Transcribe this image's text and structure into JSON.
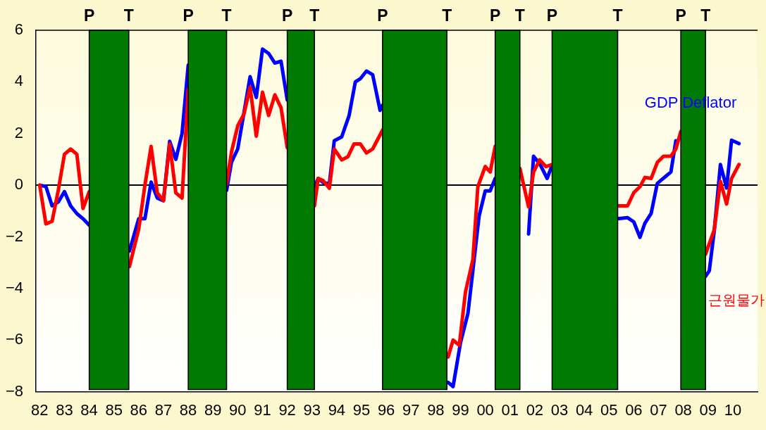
{
  "chart_data": {
    "type": "line",
    "legend": false,
    "grid": false,
    "marker": "none",
    "line_style": "solid",
    "xlim": [
      1981.85,
      2011.0
    ],
    "xticks": [
      {
        "value": 1982,
        "label": "82"
      },
      {
        "value": 1983,
        "label": "83"
      },
      {
        "value": 1984,
        "label": "84"
      },
      {
        "value": 1985,
        "label": "85"
      },
      {
        "value": 1986,
        "label": "86"
      },
      {
        "value": 1987,
        "label": "87"
      },
      {
        "value": 1988,
        "label": "88"
      },
      {
        "value": 1989,
        "label": "89"
      },
      {
        "value": 1990,
        "label": "90"
      },
      {
        "value": 1991,
        "label": "91"
      },
      {
        "value": 1992,
        "label": "92"
      },
      {
        "value": 1993,
        "label": "93"
      },
      {
        "value": 1994,
        "label": "94"
      },
      {
        "value": 1995,
        "label": "95"
      },
      {
        "value": 1996,
        "label": "96"
      },
      {
        "value": 1997,
        "label": "97"
      },
      {
        "value": 1998,
        "label": "98"
      },
      {
        "value": 1999,
        "label": "99"
      },
      {
        "value": 2000,
        "label": "00"
      },
      {
        "value": 2001,
        "label": "01"
      },
      {
        "value": 2002,
        "label": "02"
      },
      {
        "value": 2003,
        "label": "03"
      },
      {
        "value": 2004,
        "label": "04"
      },
      {
        "value": 2005,
        "label": "05"
      },
      {
        "value": 2006,
        "label": "06"
      },
      {
        "value": 2007,
        "label": "07"
      },
      {
        "value": 2008,
        "label": "08"
      },
      {
        "value": 2009,
        "label": "09"
      },
      {
        "value": 2010,
        "label": "10"
      }
    ],
    "ylim": [
      -8,
      6
    ],
    "yticks": [
      6,
      4,
      2,
      0,
      {
        "value": -2,
        "label": "−2"
      },
      {
        "value": -4,
        "label": "−4"
      },
      {
        "value": -6,
        "label": "−6"
      },
      {
        "value": -8,
        "label": "−8"
      }
    ],
    "series": [
      {
        "name": "GDP Deflator",
        "color": "#0000ff",
        "x": [
          1982.0,
          1982.25,
          1982.5,
          1982.75,
          1983.0,
          1983.25,
          1983.5,
          1983.75,
          1984.0,
          1984.8,
          1985.625,
          1986.0,
          1986.25,
          1986.5,
          1986.75,
          1987.0,
          1987.25,
          1987.5,
          1987.75,
          1988.0,
          1988.8,
          1989.55,
          1989.75,
          1990.0,
          1990.25,
          1990.5,
          1990.75,
          1991.0,
          1991.25,
          1991.5,
          1991.75,
          1992.0,
          1992.5,
          1993.1,
          1993.25,
          1993.45,
          1993.7,
          1993.9,
          1994.2,
          1994.5,
          1994.75,
          1994.95,
          1995.2,
          1995.45,
          1995.75,
          1995.85,
          1997.0,
          1998.5,
          1998.7,
          1999.0,
          1999.3,
          1999.5,
          1999.75,
          2000.0,
          2000.2,
          2000.4,
          2000.9,
          2001.4,
          2001.75,
          2001.95,
          2002.2,
          2002.5,
          2002.7,
          2004.0,
          2005.35,
          2005.75,
          2006.0,
          2006.25,
          2006.45,
          2006.7,
          2006.95,
          2007.25,
          2007.5,
          2007.7,
          2007.9,
          2008.4,
          2008.9,
          2009.05,
          2009.25,
          2009.5,
          2009.75,
          2009.95,
          2010.25
        ],
        "values": [
          0,
          -0.05,
          -0.8,
          -0.65,
          -0.25,
          -0.8,
          -1.1,
          -1.3,
          -1.55,
          null,
          -2.55,
          -1.3,
          -1.3,
          0.12,
          -0.5,
          -0.6,
          1.7,
          1.0,
          2.0,
          4.65,
          null,
          -0.2,
          0.9,
          1.4,
          2.8,
          4.2,
          3.4,
          5.27,
          5.1,
          4.73,
          4.8,
          3.3,
          null,
          -0.05,
          0.26,
          0.1,
          0.05,
          1.72,
          1.87,
          2.7,
          4.0,
          4.12,
          4.42,
          4.28,
          2.9,
          3.1,
          null,
          -7.64,
          -7.8,
          -6.1,
          -4.97,
          -3.3,
          -1.2,
          -0.22,
          -0.22,
          0.26,
          null,
          null,
          -1.89,
          1.12,
          0.83,
          0.26,
          0.78,
          null,
          -1.3,
          -1.26,
          -1.42,
          -2.02,
          -1.47,
          -1.1,
          0.07,
          0.31,
          0.51,
          1.72,
          null,
          null,
          -3.53,
          -3.32,
          -1.78,
          0.8,
          -0.11,
          1.74,
          1.61
        ]
      },
      {
        "name": "근원물가",
        "color": "#ff0000",
        "x": [
          1982.0,
          1982.25,
          1982.5,
          1982.75,
          1983.0,
          1983.25,
          1983.5,
          1983.75,
          1984.0,
          1984.8,
          1985.625,
          1986.0,
          1986.25,
          1986.5,
          1986.75,
          1987.0,
          1987.25,
          1987.5,
          1987.75,
          1988.0,
          1988.8,
          1989.55,
          1989.75,
          1990.0,
          1990.25,
          1990.5,
          1990.75,
          1991.0,
          1991.25,
          1991.5,
          1991.75,
          1992.0,
          1992.5,
          1993.1,
          1993.25,
          1993.45,
          1993.7,
          1993.9,
          1994.2,
          1994.45,
          1994.7,
          1994.95,
          1995.2,
          1995.45,
          1995.85,
          1997.0,
          1998.5,
          1998.7,
          1998.95,
          1999.2,
          1999.5,
          1999.7,
          2000.0,
          2000.2,
          2000.4,
          2000.9,
          2001.4,
          2001.75,
          2001.95,
          2002.2,
          2002.45,
          2002.7,
          2004.0,
          2005.35,
          2005.75,
          2006.0,
          2006.25,
          2006.45,
          2006.7,
          2006.95,
          2007.2,
          2007.5,
          2007.7,
          2007.9,
          2008.4,
          2008.9,
          2009.25,
          2009.5,
          2009.75,
          2009.95,
          2010.25
        ],
        "values": [
          0,
          -1.5,
          -1.4,
          -0.2,
          1.2,
          1.4,
          1.2,
          -0.9,
          -0.25,
          null,
          -3.15,
          -1.7,
          0,
          1.5,
          -0.3,
          -0.6,
          1.6,
          -0.3,
          -0.5,
          3.7,
          null,
          0.05,
          1.3,
          2.3,
          2.75,
          3.8,
          1.9,
          3.6,
          2.7,
          3.5,
          3.0,
          1.45,
          null,
          -0.8,
          0.26,
          0.18,
          -0.12,
          1.4,
          0.98,
          1.1,
          1.6,
          1.6,
          1.25,
          1.4,
          2.13,
          null,
          -6.65,
          -6.0,
          -6.2,
          -4.14,
          -2.88,
          -0.06,
          0.72,
          0.51,
          1.5,
          null,
          0.65,
          -0.84,
          0.51,
          0.98,
          0.72,
          0.8,
          null,
          -0.8,
          -0.8,
          -0.29,
          -0.06,
          0.3,
          0.26,
          0.88,
          1.12,
          1.12,
          1.4,
          2.08,
          null,
          -2.67,
          -1.73,
          0.15,
          -0.73,
          0.26,
          0.8
        ]
      }
    ],
    "ref_lines": [
      {
        "axis": "y",
        "value": 0,
        "color": "#000000"
      }
    ],
    "bands": [
      {
        "axis": "x",
        "from": 1984.0,
        "to": 1985.6,
        "color": "#007a00"
      },
      {
        "axis": "x",
        "from": 1988.0,
        "to": 1989.55,
        "color": "#007a00"
      },
      {
        "axis": "x",
        "from": 1992.0,
        "to": 1993.1,
        "color": "#007a00"
      },
      {
        "axis": "x",
        "from": 1995.85,
        "to": 1998.45,
        "color": "#007a00"
      },
      {
        "axis": "x",
        "from": 2000.4,
        "to": 2001.4,
        "color": "#007a00"
      },
      {
        "axis": "x",
        "from": 2002.7,
        "to": 2005.35,
        "color": "#007a00"
      },
      {
        "axis": "x",
        "from": 2007.9,
        "to": 2008.9,
        "color": "#007a00"
      }
    ],
    "annotations": [
      {
        "text": "P",
        "x": 1984.0,
        "y": 6
      },
      {
        "text": "T",
        "x": 1985.6,
        "y": 6
      },
      {
        "text": "P",
        "x": 1988.0,
        "y": 6
      },
      {
        "text": "T",
        "x": 1989.55,
        "y": 6
      },
      {
        "text": "P",
        "x": 1992.0,
        "y": 6
      },
      {
        "text": "T",
        "x": 1993.1,
        "y": 6
      },
      {
        "text": "P",
        "x": 1995.85,
        "y": 6
      },
      {
        "text": "T",
        "x": 1998.45,
        "y": 6
      },
      {
        "text": "P",
        "x": 2000.4,
        "y": 6
      },
      {
        "text": "T",
        "x": 2001.4,
        "y": 6
      },
      {
        "text": "P",
        "x": 2002.7,
        "y": 6
      },
      {
        "text": "T",
        "x": 2005.35,
        "y": 6
      },
      {
        "text": "P",
        "x": 2007.9,
        "y": 6
      },
      {
        "text": "T",
        "x": 2008.9,
        "y": 6
      }
    ]
  }
}
